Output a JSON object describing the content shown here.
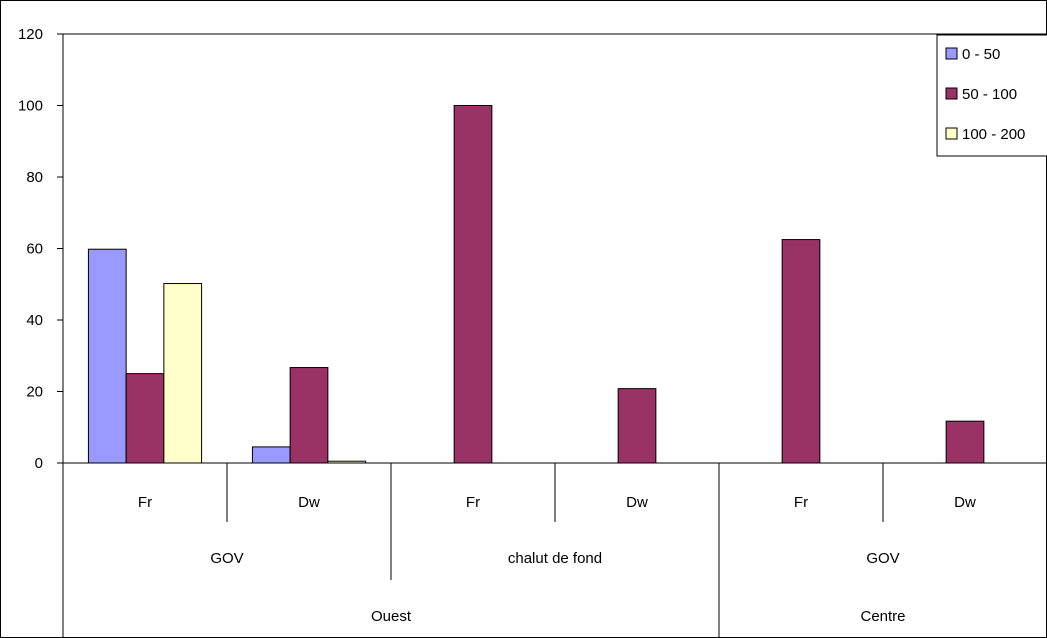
{
  "chart_data": {
    "type": "bar",
    "title": "",
    "xlabel": "",
    "ylabel": "",
    "ylim": [
      0,
      120
    ],
    "yticks": [
      0,
      20,
      40,
      60,
      80,
      100,
      120
    ],
    "grid": false,
    "legend_position": "top-right",
    "categories": [
      {
        "level1": "Fr",
        "level2": "GOV",
        "level3": "Ouest"
      },
      {
        "level1": "Dw",
        "level2": "GOV",
        "level3": "Ouest"
      },
      {
        "level1": "Fr",
        "level2": "chalut de fond",
        "level3": "Ouest"
      },
      {
        "level1": "Dw",
        "level2": "chalut de fond",
        "level3": "Ouest"
      },
      {
        "level1": "Fr",
        "level2": "GOV",
        "level3": "Centre"
      },
      {
        "level1": "Dw",
        "level2": "GOV",
        "level3": "Centre"
      }
    ],
    "level2_groups": [
      {
        "label": "GOV",
        "span": 2
      },
      {
        "label": "chalut de fond",
        "span": 2
      },
      {
        "label": "GOV",
        "span": 2
      }
    ],
    "level3_groups": [
      {
        "label": "Ouest",
        "span": 4
      },
      {
        "label": "Centre",
        "span": 2
      }
    ],
    "series": [
      {
        "name": "0 - 50",
        "color": "#9999ff",
        "values": [
          59.8,
          4.5,
          0,
          0,
          0,
          0
        ]
      },
      {
        "name": "50 - 100",
        "color": "#993366",
        "values": [
          25.0,
          26.7,
          100.0,
          20.8,
          62.5,
          11.7
        ]
      },
      {
        "name": "100 - 200",
        "color": "#ffffcc",
        "values": [
          50.2,
          0.5,
          0,
          0,
          0,
          0
        ]
      }
    ]
  }
}
